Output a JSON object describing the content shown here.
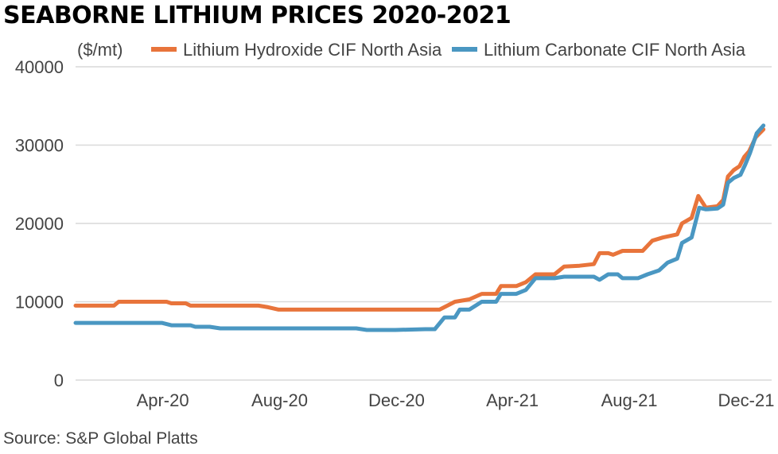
{
  "title": "SEABORNE LITHIUM PRICES 2020-2021",
  "source": "Source: S&P Global Platts",
  "chart_data": {
    "type": "line",
    "title": "SEABORNE LITHIUM PRICES 2020-2021",
    "unit_label": "($/mt)",
    "ylim": [
      0,
      40000
    ],
    "y_ticks": [
      0,
      10000,
      20000,
      30000,
      40000
    ],
    "y_tick_labels": [
      "0",
      "10000",
      "20000",
      "30000",
      "40000"
    ],
    "x_range": [
      "2020-01-01",
      "2021-12-01"
    ],
    "x_ticks": [
      {
        "date": "2020-04-01",
        "label": "Apr-20"
      },
      {
        "date": "2020-08-01",
        "label": "Aug-20"
      },
      {
        "date": "2020-12-01",
        "label": "Dec-20"
      },
      {
        "date": "2021-04-01",
        "label": "Apr-21"
      },
      {
        "date": "2021-08-01",
        "label": "Aug-21"
      },
      {
        "date": "2021-12-01",
        "label": "Dec-21"
      }
    ],
    "grid": true,
    "legend_position": "top",
    "series": [
      {
        "name": "Lithium Hydroxide CIF North Asia",
        "color": "#E8743B",
        "points": [
          [
            "2020-01-01",
            9500
          ],
          [
            "2020-02-10",
            9500
          ],
          [
            "2020-02-15",
            10000
          ],
          [
            "2020-03-10",
            10000
          ],
          [
            "2020-04-05",
            10000
          ],
          [
            "2020-04-10",
            9800
          ],
          [
            "2020-04-25",
            9800
          ],
          [
            "2020-04-30",
            9500
          ],
          [
            "2020-05-30",
            9500
          ],
          [
            "2020-06-30",
            9500
          ],
          [
            "2020-07-10",
            9500
          ],
          [
            "2020-07-20",
            9300
          ],
          [
            "2020-07-31",
            9000
          ],
          [
            "2020-09-30",
            9000
          ],
          [
            "2020-11-30",
            9000
          ],
          [
            "2021-01-15",
            9000
          ],
          [
            "2021-01-31",
            10000
          ],
          [
            "2021-02-15",
            10300
          ],
          [
            "2021-02-28",
            11000
          ],
          [
            "2021-03-15",
            11000
          ],
          [
            "2021-03-20",
            12000
          ],
          [
            "2021-04-05",
            12000
          ],
          [
            "2021-04-15",
            12500
          ],
          [
            "2021-04-25",
            13500
          ],
          [
            "2021-05-15",
            13500
          ],
          [
            "2021-05-25",
            14500
          ],
          [
            "2021-06-10",
            14600
          ],
          [
            "2021-06-25",
            14800
          ],
          [
            "2021-07-01",
            16200
          ],
          [
            "2021-07-10",
            16200
          ],
          [
            "2021-07-15",
            16000
          ],
          [
            "2021-07-25",
            16500
          ],
          [
            "2021-08-15",
            16500
          ],
          [
            "2021-08-25",
            17800
          ],
          [
            "2021-09-05",
            18200
          ],
          [
            "2021-09-20",
            18600
          ],
          [
            "2021-09-25",
            20000
          ],
          [
            "2021-10-05",
            20700
          ],
          [
            "2021-10-12",
            23500
          ],
          [
            "2021-10-20",
            22000
          ],
          [
            "2021-11-01",
            22200
          ],
          [
            "2021-11-07",
            23000
          ],
          [
            "2021-11-12",
            26000
          ],
          [
            "2021-11-18",
            26800
          ],
          [
            "2021-11-24",
            27300
          ],
          [
            "2021-11-29",
            28500
          ],
          [
            "2021-12-04",
            29200
          ],
          [
            "2021-12-11",
            31000
          ],
          [
            "2021-12-19",
            32000
          ]
        ]
      },
      {
        "name": "Lithium Carbonate CIF North Asia",
        "color": "#4A97C2",
        "points": [
          [
            "2020-01-01",
            7300
          ],
          [
            "2020-02-15",
            7300
          ],
          [
            "2020-03-31",
            7300
          ],
          [
            "2020-04-10",
            7000
          ],
          [
            "2020-04-30",
            7000
          ],
          [
            "2020-05-05",
            6800
          ],
          [
            "2020-05-20",
            6800
          ],
          [
            "2020-05-31",
            6600
          ],
          [
            "2020-07-31",
            6600
          ],
          [
            "2020-09-30",
            6600
          ],
          [
            "2020-10-20",
            6600
          ],
          [
            "2020-10-31",
            6400
          ],
          [
            "2020-11-30",
            6400
          ],
          [
            "2020-12-31",
            6500
          ],
          [
            "2021-01-10",
            6500
          ],
          [
            "2021-01-20",
            8000
          ],
          [
            "2021-01-31",
            8000
          ],
          [
            "2021-02-05",
            9000
          ],
          [
            "2021-02-15",
            9000
          ],
          [
            "2021-02-28",
            10000
          ],
          [
            "2021-03-15",
            10000
          ],
          [
            "2021-03-20",
            11000
          ],
          [
            "2021-04-05",
            11000
          ],
          [
            "2021-04-15",
            11500
          ],
          [
            "2021-04-25",
            13000
          ],
          [
            "2021-05-15",
            13000
          ],
          [
            "2021-05-25",
            13200
          ],
          [
            "2021-06-25",
            13200
          ],
          [
            "2021-07-01",
            12800
          ],
          [
            "2021-07-10",
            13500
          ],
          [
            "2021-07-20",
            13500
          ],
          [
            "2021-07-25",
            13000
          ],
          [
            "2021-08-10",
            13000
          ],
          [
            "2021-08-20",
            13500
          ],
          [
            "2021-09-01",
            14000
          ],
          [
            "2021-09-10",
            15000
          ],
          [
            "2021-09-20",
            15500
          ],
          [
            "2021-09-25",
            17500
          ],
          [
            "2021-10-05",
            18200
          ],
          [
            "2021-10-13",
            22000
          ],
          [
            "2021-10-20",
            21800
          ],
          [
            "2021-11-01",
            21900
          ],
          [
            "2021-11-07",
            22400
          ],
          [
            "2021-11-12",
            25200
          ],
          [
            "2021-11-18",
            25800
          ],
          [
            "2021-11-25",
            26200
          ],
          [
            "2021-11-30",
            27500
          ],
          [
            "2021-12-05",
            29000
          ],
          [
            "2021-12-12",
            31500
          ],
          [
            "2021-12-19",
            32500
          ]
        ]
      }
    ]
  }
}
